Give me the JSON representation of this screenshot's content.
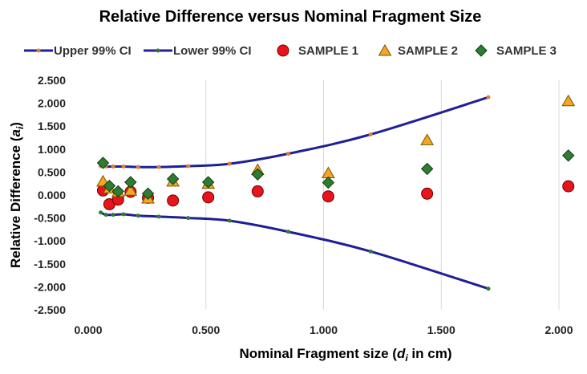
{
  "chart_data": {
    "type": "scatter",
    "title": "Relative Difference versus Nominal Fragment Size",
    "xlabel_prefix": "Nominal Fragment size (",
    "xlabel_var": "d",
    "xlabel_sub": "i",
    "xlabel_suffix": " in cm)",
    "ylabel_prefix": "Relative Difference (",
    "ylabel_var": "a",
    "ylabel_sub": "i",
    "ylabel_suffix": ")",
    "xlim": [
      0,
      2
    ],
    "ylim": [
      -2.5,
      2.5
    ],
    "x_ticks": [
      0,
      0.5,
      1.0,
      1.5,
      2.0
    ],
    "x_tick_labels": [
      "0.000",
      "0.500",
      "1.000",
      "1.500",
      "2.000"
    ],
    "y_ticks": [
      2.5,
      2.0,
      1.5,
      1.0,
      0.5,
      0.0,
      -0.5,
      -1.0,
      -1.5,
      -2.0,
      -2.5
    ],
    "y_tick_labels": [
      "2.500",
      "2.000",
      "1.500",
      "1.000",
      "0.500",
      "0.000",
      "-0.500",
      "-1.000",
      "-1.500",
      "-2.000",
      "-2.500"
    ],
    "grid": "vertical",
    "legend_position": "top",
    "colors": {
      "ci_line": "#1f1f96",
      "upper_marker": "#e07b39",
      "lower_marker": "#2e7d32",
      "sample1": "#e8141b",
      "sample2": "#f5a623",
      "sample3": "#2e7d32",
      "grid": "#d9d9d9"
    },
    "series": [
      {
        "name": "Upper 99% CI",
        "kind": "line",
        "x": [
          0.053,
          0.075,
          0.106,
          0.15,
          0.212,
          0.3,
          0.425,
          0.6,
          0.85,
          1.2,
          1.7
        ],
        "y": [
          0.63,
          0.62,
          0.62,
          0.62,
          0.61,
          0.61,
          0.63,
          0.68,
          0.9,
          1.32,
          2.13
        ]
      },
      {
        "name": "Lower 99% CI",
        "kind": "line",
        "x": [
          0.053,
          0.075,
          0.106,
          0.15,
          0.212,
          0.3,
          0.425,
          0.6,
          0.85,
          1.2,
          1.7
        ],
        "y": [
          -0.38,
          -0.43,
          -0.43,
          -0.42,
          -0.45,
          -0.47,
          -0.5,
          -0.56,
          -0.8,
          -1.23,
          -2.04
        ]
      },
      {
        "name": "SAMPLE 1",
        "kind": "circle",
        "x": [
          0.063,
          0.09,
          0.127,
          0.18,
          0.254,
          0.36,
          0.51,
          0.72,
          1.02,
          1.44,
          2.04
        ],
        "y": [
          0.1,
          -0.2,
          -0.1,
          0.07,
          -0.06,
          -0.12,
          -0.05,
          0.08,
          -0.03,
          0.03,
          0.19
        ]
      },
      {
        "name": "SAMPLE 2",
        "kind": "triangle",
        "x": [
          0.063,
          0.09,
          0.127,
          0.18,
          0.254,
          0.36,
          0.51,
          0.72,
          1.02,
          1.44,
          2.04
        ],
        "y": [
          0.3,
          0.15,
          0.07,
          0.1,
          -0.07,
          0.3,
          0.25,
          0.55,
          0.48,
          1.2,
          2.05
        ]
      },
      {
        "name": "SAMPLE 3",
        "kind": "diamond",
        "x": [
          0.063,
          0.09,
          0.127,
          0.18,
          0.254,
          0.36,
          0.51,
          0.72,
          1.02,
          1.44,
          2.04
        ],
        "y": [
          0.7,
          0.2,
          0.08,
          0.28,
          0.03,
          0.35,
          0.28,
          0.45,
          0.27,
          0.57,
          0.86
        ]
      }
    ]
  }
}
